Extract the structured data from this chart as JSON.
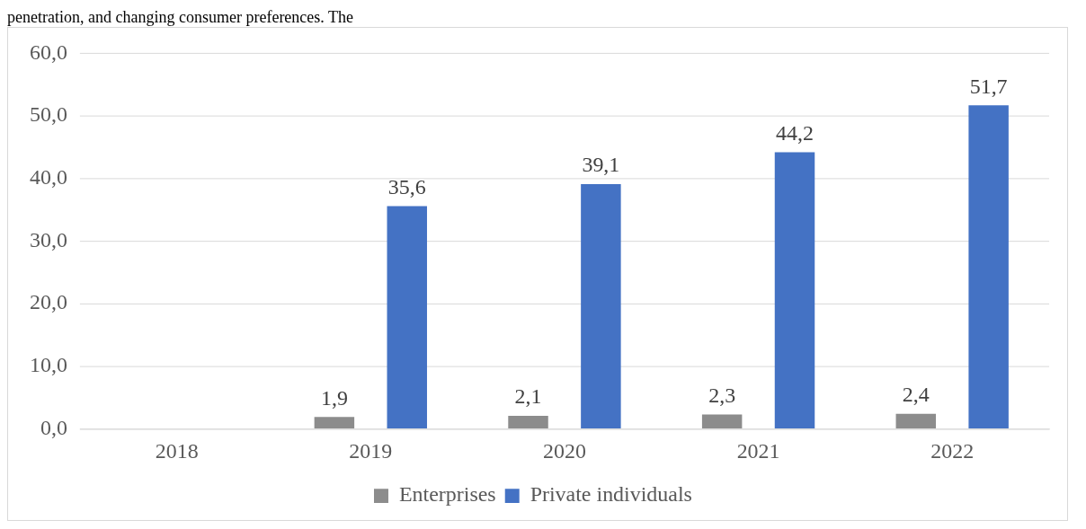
{
  "chart_data": {
    "type": "bar",
    "categories": [
      "2018",
      "2019",
      "2020",
      "2021",
      "2022"
    ],
    "series": [
      {
        "name": "Enterprises",
        "color": "#8c8c8c",
        "values": [
          null,
          1.9,
          2.1,
          2.3,
          2.4
        ],
        "value_labels": [
          null,
          "1,9",
          "2,1",
          "2,3",
          "2,4"
        ]
      },
      {
        "name": "Private individuals",
        "color": "#4472c4",
        "values": [
          null,
          35.6,
          39.1,
          44.2,
          51.7
        ],
        "value_labels": [
          null,
          "35,6",
          "39,1",
          "44,2",
          "51,7"
        ]
      }
    ],
    "ylim": [
      0,
      60
    ],
    "yticks": [
      {
        "value": 0,
        "label": "0,0"
      },
      {
        "value": 10,
        "label": "10,0"
      },
      {
        "value": 20,
        "label": "20,0"
      },
      {
        "value": 30,
        "label": "30,0"
      },
      {
        "value": 40,
        "label": "40,0"
      },
      {
        "value": 50,
        "label": "50,0"
      },
      {
        "value": 60,
        "label": "60,0"
      }
    ],
    "grid": "y",
    "legend": "bottom",
    "annotations": [
      "penetration, and changing consumer preferences. The"
    ]
  }
}
